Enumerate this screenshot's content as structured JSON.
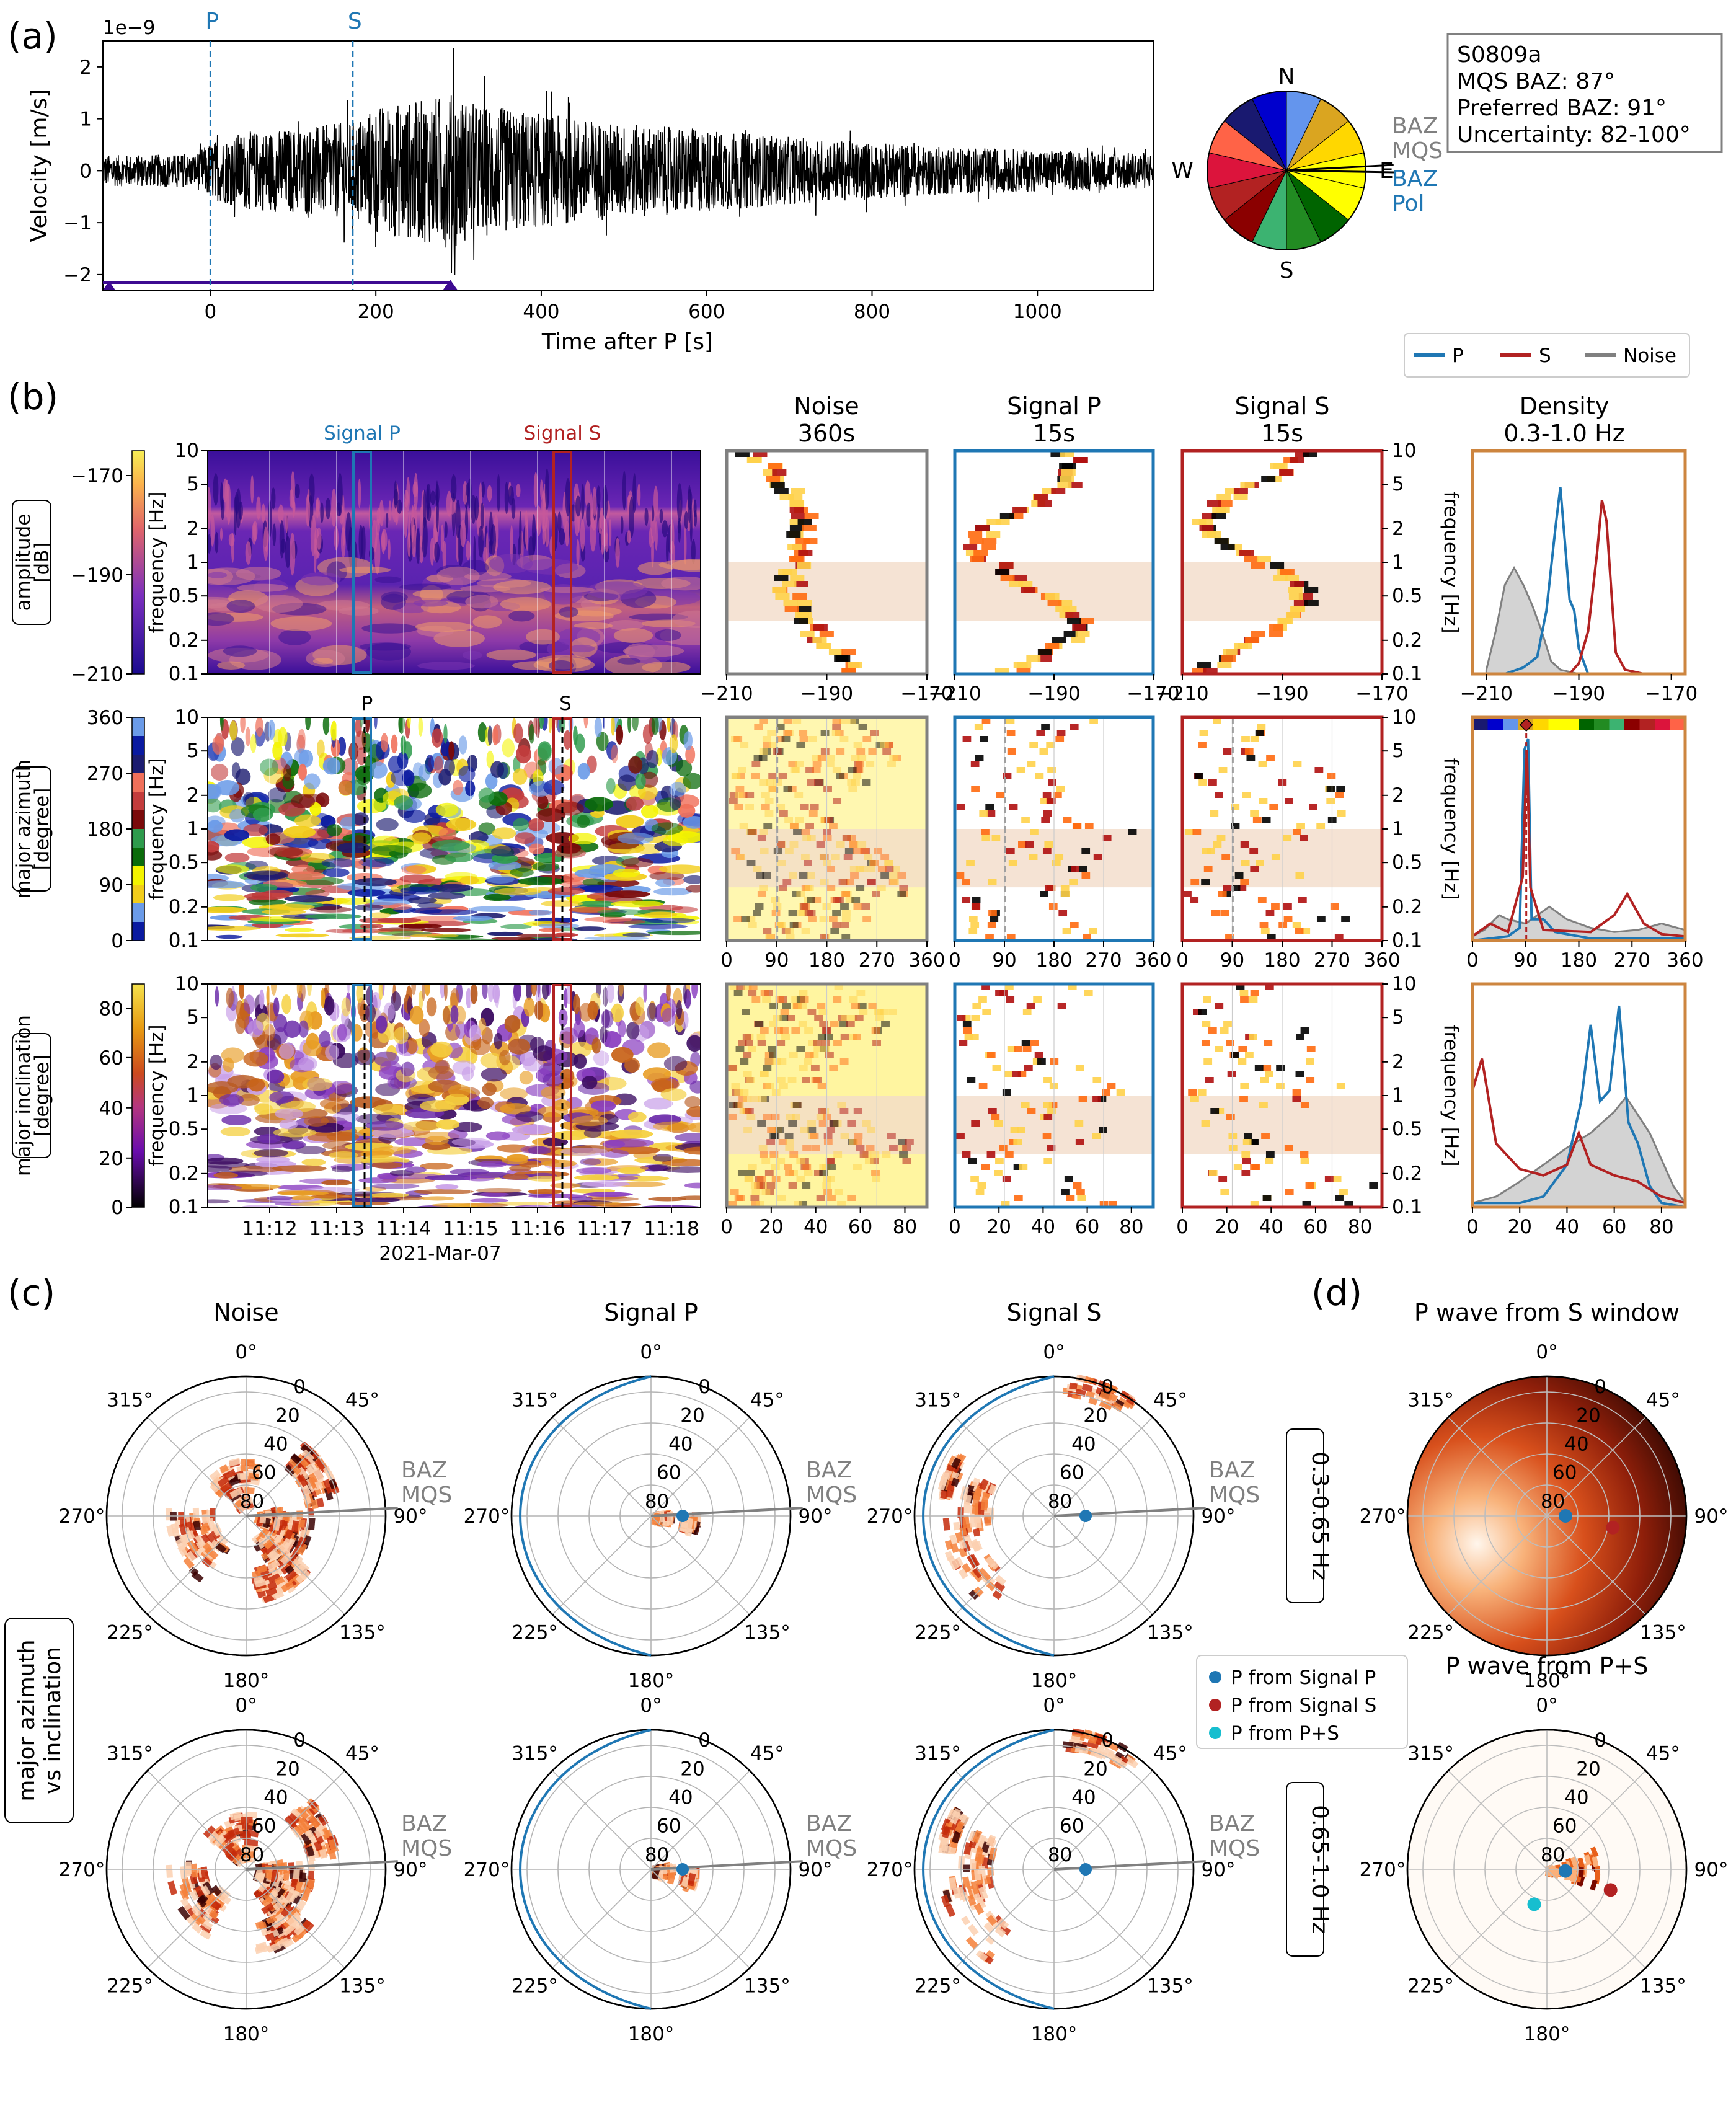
{
  "figure": {
    "panel_a": "(a)",
    "panel_b": "(b)",
    "panel_c": "(c)",
    "panel_d": "(d)"
  },
  "colors": {
    "p": "#1f77b4",
    "s": "#b22222",
    "noise": "#808080",
    "density_frame": "#cd853f",
    "band": "#f2dcc9"
  },
  "chart_data": [
    {
      "id": "seismogram",
      "type": "line",
      "title": "",
      "xlabel": "Time after P [s]",
      "ylabel": "Velocity [m/s]",
      "y_scale_label": "1e−9",
      "xlim": [
        -130,
        1140
      ],
      "ylim": [
        -2.3,
        2.5
      ],
      "xticks": [
        0,
        200,
        400,
        600,
        800,
        1000
      ],
      "xtick_labels": [
        "0",
        "200",
        "400",
        "600",
        "800",
        "1000"
      ],
      "yticks": [
        -2,
        -1,
        0,
        1,
        2
      ],
      "ytick_labels": [
        "−2",
        "−1",
        "0",
        "1",
        "2"
      ],
      "phase_markers": [
        {
          "label": "P",
          "time": 0
        },
        {
          "label": "S",
          "time": 172
        }
      ],
      "window_bar": {
        "start": -130,
        "end": 290
      },
      "envelope": {
        "t": [
          -130,
          -20,
          0,
          40,
          120,
          172,
          200,
          250,
          290,
          320,
          400,
          500,
          600,
          700,
          800,
          900,
          1000,
          1140
        ],
        "amp": [
          0.3,
          0.32,
          0.55,
          0.75,
          0.85,
          0.95,
          1.25,
          1.35,
          1.5,
          1.3,
          1.1,
          0.9,
          0.8,
          0.65,
          0.55,
          0.45,
          0.4,
          0.35
        ]
      },
      "peak": {
        "time": 294,
        "max": 2.35,
        "min": -2.0
      }
    },
    {
      "id": "baz-wheel",
      "type": "pie",
      "directions": [
        "N",
        "E",
        "S",
        "W"
      ],
      "slice_colors": [
        "#6495ed",
        "#daa520",
        "#ffd700",
        "#ffff00",
        "#ffff00",
        "#006400",
        "#228b22",
        "#3cb371",
        "#8b0000",
        "#b22222",
        "#dc143c",
        "#ff6347",
        "#191970",
        "#0000cd"
      ],
      "baz_mqs": 87,
      "baz_pol": 91,
      "labels": {
        "mqs": [
          "BAZ",
          "MQS"
        ],
        "pol": [
          "BAZ",
          "Pol"
        ]
      }
    }
  ],
  "info_box": {
    "event": "S0809a",
    "mqs_baz": "MQS BAZ: 87°",
    "preferred_baz": "Preferred BAZ: 91°",
    "uncertainty": "Uncertainty: 82-100°"
  },
  "legend_b": {
    "p": "P",
    "s": "S",
    "noise": "Noise"
  },
  "spectro": {
    "time_ticks": [
      "11:12",
      "11:13",
      "11:14",
      "11:15",
      "11:16",
      "11:17",
      "11:18"
    ],
    "date": "2021-Mar-07",
    "signal_p": "Signal P",
    "signal_s": "Signal S",
    "p_mark": "P",
    "s_mark": "S",
    "freq_label": "frequency [Hz]",
    "freq_ticks": [
      "0.1",
      "0.2",
      "0.5",
      "1",
      "2",
      "5",
      "10"
    ]
  },
  "rows": [
    {
      "name": "amplitude",
      "title": [
        "amplitude",
        "[dB]"
      ],
      "cbar_ticks": [
        "−170",
        "−190",
        "−210"
      ],
      "hist_xticks": [
        "−210",
        "−190",
        "−170"
      ],
      "density_xticks": [
        "−210",
        "−190",
        "−170"
      ]
    },
    {
      "name": "azimuth",
      "title": [
        "major azimuth",
        "[degree]"
      ],
      "cbar_ticks": [
        "360",
        "270",
        "180",
        "90",
        "0"
      ],
      "hist_xticks": [
        "0",
        "90",
        "180",
        "270",
        "360"
      ],
      "density_xticks": [
        "0",
        "90",
        "180",
        "270",
        "360"
      ]
    },
    {
      "name": "inclination",
      "title": [
        "major inclination",
        "[degree]"
      ],
      "cbar_ticks": [
        "80",
        "60",
        "40",
        "20",
        "0"
      ],
      "hist_xticks": [
        "0",
        "20",
        "40",
        "60",
        "80"
      ],
      "density_xticks": [
        "0",
        "20",
        "40",
        "60",
        "80"
      ]
    }
  ],
  "columns": {
    "noise": [
      "Noise",
      "360s"
    ],
    "signal_p": [
      "Signal P",
      "15s"
    ],
    "signal_s": [
      "Signal S",
      "15s"
    ],
    "density": [
      "Density",
      "0.3-1.0 Hz"
    ]
  },
  "density": {
    "amplitude": {
      "noise": [
        [
          -210,
          0.02
        ],
        [
          -208,
          0.2
        ],
        [
          -206,
          0.42
        ],
        [
          -204,
          0.5
        ],
        [
          -202,
          0.42
        ],
        [
          -200,
          0.32
        ],
        [
          -198,
          0.2
        ],
        [
          -196,
          0.06
        ],
        [
          -194,
          0.02
        ],
        [
          -190,
          0
        ]
      ],
      "p": [
        [
          -206,
          0
        ],
        [
          -202,
          0.03
        ],
        [
          -199,
          0.08
        ],
        [
          -197,
          0.3
        ],
        [
          -195,
          0.7
        ],
        [
          -194,
          0.88
        ],
        [
          -193,
          0.62
        ],
        [
          -192,
          0.35
        ],
        [
          -191,
          0.3
        ],
        [
          -190,
          0.12
        ],
        [
          -188,
          0
        ]
      ],
      "s": [
        [
          -192,
          0
        ],
        [
          -190,
          0.05
        ],
        [
          -188,
          0.2
        ],
        [
          -186,
          0.58
        ],
        [
          -185,
          0.82
        ],
        [
          -184,
          0.72
        ],
        [
          -183,
          0.4
        ],
        [
          -182,
          0.1
        ],
        [
          -180,
          0.02
        ],
        [
          -176,
          0
        ]
      ]
    },
    "azimuth": {
      "noise": [
        [
          0,
          0.02
        ],
        [
          20,
          0.05
        ],
        [
          45,
          0.12
        ],
        [
          60,
          0.1
        ],
        [
          90,
          0.08
        ],
        [
          110,
          0.12
        ],
        [
          130,
          0.16
        ],
        [
          160,
          0.1
        ],
        [
          200,
          0.06
        ],
        [
          240,
          0.04
        ],
        [
          280,
          0.05
        ],
        [
          320,
          0.08
        ],
        [
          360,
          0.05
        ]
      ],
      "p": [
        [
          0,
          0
        ],
        [
          60,
          0.02
        ],
        [
          80,
          0.06
        ],
        [
          88,
          0.9
        ],
        [
          94,
          0.95
        ],
        [
          100,
          0.1
        ],
        [
          120,
          0.1
        ],
        [
          140,
          0.04
        ],
        [
          200,
          0.01
        ],
        [
          360,
          0.01
        ]
      ],
      "s": [
        [
          0,
          0.02
        ],
        [
          30,
          0.08
        ],
        [
          60,
          0.04
        ],
        [
          85,
          0.3
        ],
        [
          92,
          0.9
        ],
        [
          98,
          0.25
        ],
        [
          120,
          0.05
        ],
        [
          200,
          0.04
        ],
        [
          240,
          0.12
        ],
        [
          262,
          0.22
        ],
        [
          290,
          0.08
        ],
        [
          320,
          0.03
        ],
        [
          360,
          0.02
        ]
      ],
      "marker": 91
    },
    "inclination": {
      "noise": [
        [
          0,
          0.02
        ],
        [
          10,
          0.05
        ],
        [
          20,
          0.12
        ],
        [
          30,
          0.2
        ],
        [
          40,
          0.28
        ],
        [
          50,
          0.35
        ],
        [
          60,
          0.45
        ],
        [
          65,
          0.52
        ],
        [
          75,
          0.35
        ],
        [
          85,
          0.1
        ],
        [
          90,
          0.02
        ]
      ],
      "p": [
        [
          0,
          0.02
        ],
        [
          20,
          0.02
        ],
        [
          30,
          0.05
        ],
        [
          40,
          0.2
        ],
        [
          46,
          0.5
        ],
        [
          50,
          0.86
        ],
        [
          54,
          0.5
        ],
        [
          58,
          0.55
        ],
        [
          62,
          0.95
        ],
        [
          66,
          0.4
        ],
        [
          70,
          0.3
        ],
        [
          75,
          0.1
        ],
        [
          80,
          0.02
        ],
        [
          90,
          0
        ]
      ],
      "s": [
        [
          0,
          0.55
        ],
        [
          4,
          0.7
        ],
        [
          10,
          0.3
        ],
        [
          20,
          0.18
        ],
        [
          30,
          0.15
        ],
        [
          40,
          0.2
        ],
        [
          45,
          0.35
        ],
        [
          50,
          0.2
        ],
        [
          60,
          0.15
        ],
        [
          70,
          0.12
        ],
        [
          80,
          0.05
        ],
        [
          90,
          0.02
        ]
      ]
    }
  },
  "polar": {
    "row_label": [
      "major azimuth",
      "vs inclination"
    ],
    "cols": [
      "Noise",
      "Signal P",
      "Signal S"
    ],
    "band_labels": [
      "0.3-0.65 Hz",
      "0.65-1.0 Hz"
    ],
    "angle_labels": [
      "0°",
      "45°",
      "90°",
      "135°",
      "180°",
      "225°",
      "270°",
      "315°"
    ],
    "radial_labels": [
      "0",
      "20",
      "40",
      "60",
      "80"
    ],
    "baz_label": [
      "BAZ",
      "MQS"
    ],
    "baz_angle": 87,
    "p_from_signal_p": {
      "azimuth": 90,
      "inclination": 78
    },
    "clusters": {
      "noise": [
        [
          110,
          60,
          25
        ],
        [
          130,
          65,
          20
        ],
        [
          95,
          75,
          15
        ],
        [
          60,
          40,
          20
        ],
        [
          340,
          70,
          30
        ],
        [
          240,
          55,
          30
        ],
        [
          150,
          45,
          20
        ]
      ],
      "signal_p": [
        [
          92,
          82,
          12
        ],
        [
          100,
          65,
          10
        ]
      ],
      "signal_s": [
        [
          20,
          5,
          15
        ],
        [
          275,
          40,
          20
        ],
        [
          240,
          30,
          25
        ],
        [
          290,
          20,
          10
        ]
      ]
    }
  },
  "panel_d": {
    "titles": [
      "P wave from S window",
      "P wave from P+S"
    ],
    "legend": [
      "P from Signal P",
      "P from Signal S",
      "P from P+S"
    ],
    "legend_colors": [
      "#1f77b4",
      "#b22222",
      "#17becf"
    ],
    "angle_labels": [
      "0°",
      "45°",
      "90°",
      "135°",
      "180°",
      "225°",
      "270°",
      "315°"
    ],
    "radial_labels": [
      "0",
      "20",
      "40",
      "60",
      "80"
    ],
    "points_top": [
      {
        "azimuth": 90,
        "inclination": 85,
        "color": "#1f77b4"
      },
      {
        "azimuth": 100,
        "inclination": 72,
        "color": "#b22222"
      }
    ],
    "points_bottom": [
      {
        "azimuth": 95,
        "inclination": 85,
        "color": "#1f77b4"
      },
      {
        "azimuth": 108,
        "inclination": 72,
        "color": "#b22222"
      },
      {
        "azimuth": 200,
        "inclination": 80,
        "color": "#17becf"
      }
    ]
  }
}
